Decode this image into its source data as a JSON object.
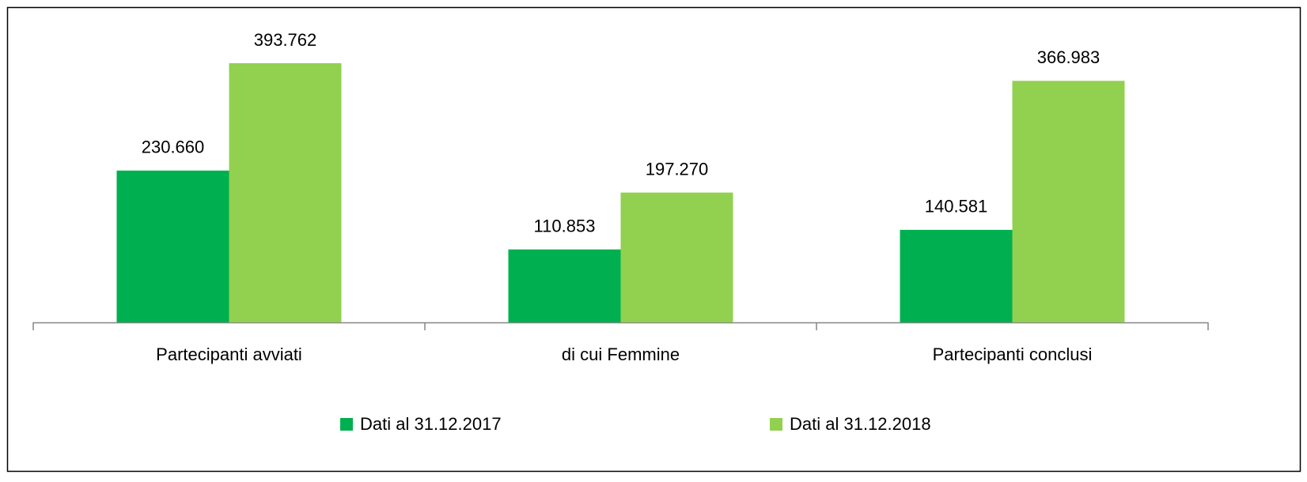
{
  "chart_data": {
    "type": "bar",
    "categories": [
      "Partecipanti avviati",
      "di cui Femmine",
      "Partecipanti conclusi"
    ],
    "series": [
      {
        "name": "Dati al 31.12.2017",
        "color": "#00b050",
        "values": [
          230660,
          110853,
          140581
        ],
        "value_labels": [
          "230.660",
          "110.853",
          "140.581"
        ]
      },
      {
        "name": "Dati al 31.12.2018",
        "color": "#92d050",
        "values": [
          393762,
          197270,
          366983
        ],
        "value_labels": [
          "393.762",
          "197.270",
          "366.983"
        ]
      }
    ],
    "legend": "bottom"
  }
}
